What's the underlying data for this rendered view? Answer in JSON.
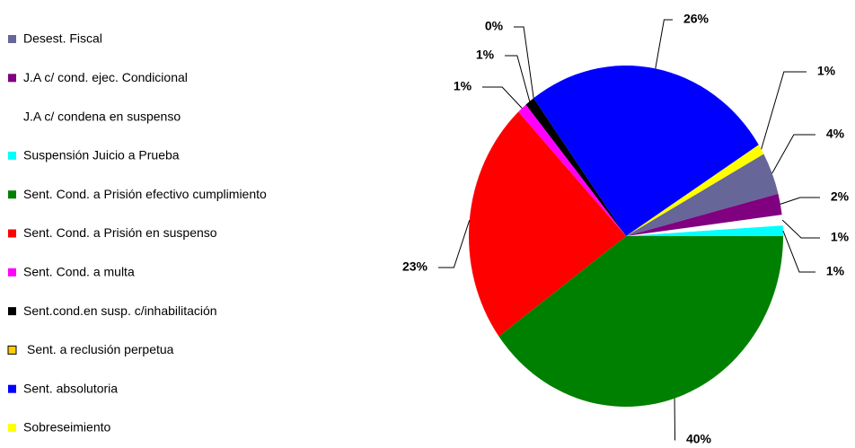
{
  "chart_data": {
    "type": "pie",
    "categories": [
      "Desest. Fiscal",
      "J.A c/ cond. ejec. Condicional",
      "J.A c/ condena en suspenso",
      "Suspensión Juicio a Prueba",
      "Sent. Cond. a Prisión efectivo cumplimiento",
      "Sent. Cond. a Prisión en suspenso",
      "Sent. Cond. a multa",
      "Sent.cond.en susp. c/inhabilitación",
      "Sent. a reclusión perpetua",
      "Sent. absolutoria",
      "Sobreseimiento"
    ],
    "values": [
      4,
      2,
      1,
      1,
      40,
      23,
      1,
      1,
      0,
      26,
      1
    ],
    "value_labels": [
      "4%",
      "2%",
      "1%",
      "1%",
      "40%",
      "23%",
      "1%",
      "1%",
      "0%",
      "26%",
      "1%"
    ],
    "colors": [
      "#666699",
      "#800080",
      "#ffffff",
      "#00ffff",
      "#008000",
      "#ff0000",
      "#ff00ff",
      "#000000",
      "#ffcc00",
      "#0000ff",
      "#ffff00"
    ]
  }
}
